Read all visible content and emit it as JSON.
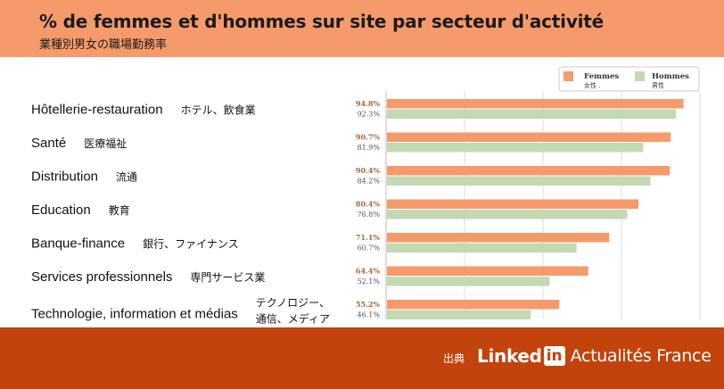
{
  "header": {
    "title": "% de femmes et d'hommes sur site par secteur d'activité",
    "subtitle": "業種別男女の職場勤務率"
  },
  "footer": {
    "source_label": "出典",
    "brand_linked": "Linked",
    "brand_in": "in",
    "brand_product": "Actualités France"
  },
  "colors": {
    "header_bg": "#f59a6a",
    "footer_bg": "#c2430c",
    "femmes": "#f59a6a",
    "hommes": "#c2d9b4"
  },
  "chart_data": {
    "type": "bar",
    "orientation": "horizontal",
    "categories": [
      {
        "fr": "Hôtellerie-restauration",
        "ja": [
          "ホテル、飲食業"
        ]
      },
      {
        "fr": "Santé",
        "ja": [
          "医療福祉"
        ]
      },
      {
        "fr": "Distribution",
        "ja": [
          "流通"
        ]
      },
      {
        "fr": "Education",
        "ja": [
          "教育"
        ]
      },
      {
        "fr": "Banque-finance",
        "ja": [
          "銀行、ファイナンス"
        ]
      },
      {
        "fr": "Services professionnels",
        "ja": [
          "専門サービス業"
        ]
      },
      {
        "fr": "Technologie, information et médias",
        "ja": [
          "テクノロジー、",
          "通信、メディア"
        ]
      }
    ],
    "series": [
      {
        "name": "Femmes",
        "name_ja": "女性",
        "values": [
          94.8,
          90.7,
          90.4,
          80.4,
          71.1,
          64.4,
          55.2
        ],
        "labels": [
          "94.8%",
          "90.7%",
          "90.4%",
          "80.4%",
          "71.1%",
          "64.4%",
          "55.2%"
        ]
      },
      {
        "name": "Hommes",
        "name_ja": "男性",
        "values": [
          92.3,
          81.9,
          84.2,
          76.8,
          60.7,
          52.1,
          46.1
        ],
        "labels": [
          "92.3%",
          "81.9%",
          "84.2%",
          "76.8%",
          "60.7%",
          "52.1%",
          "46.1%"
        ]
      }
    ],
    "xlim": [
      0,
      100
    ],
    "grid": true,
    "legend": "top-right"
  }
}
